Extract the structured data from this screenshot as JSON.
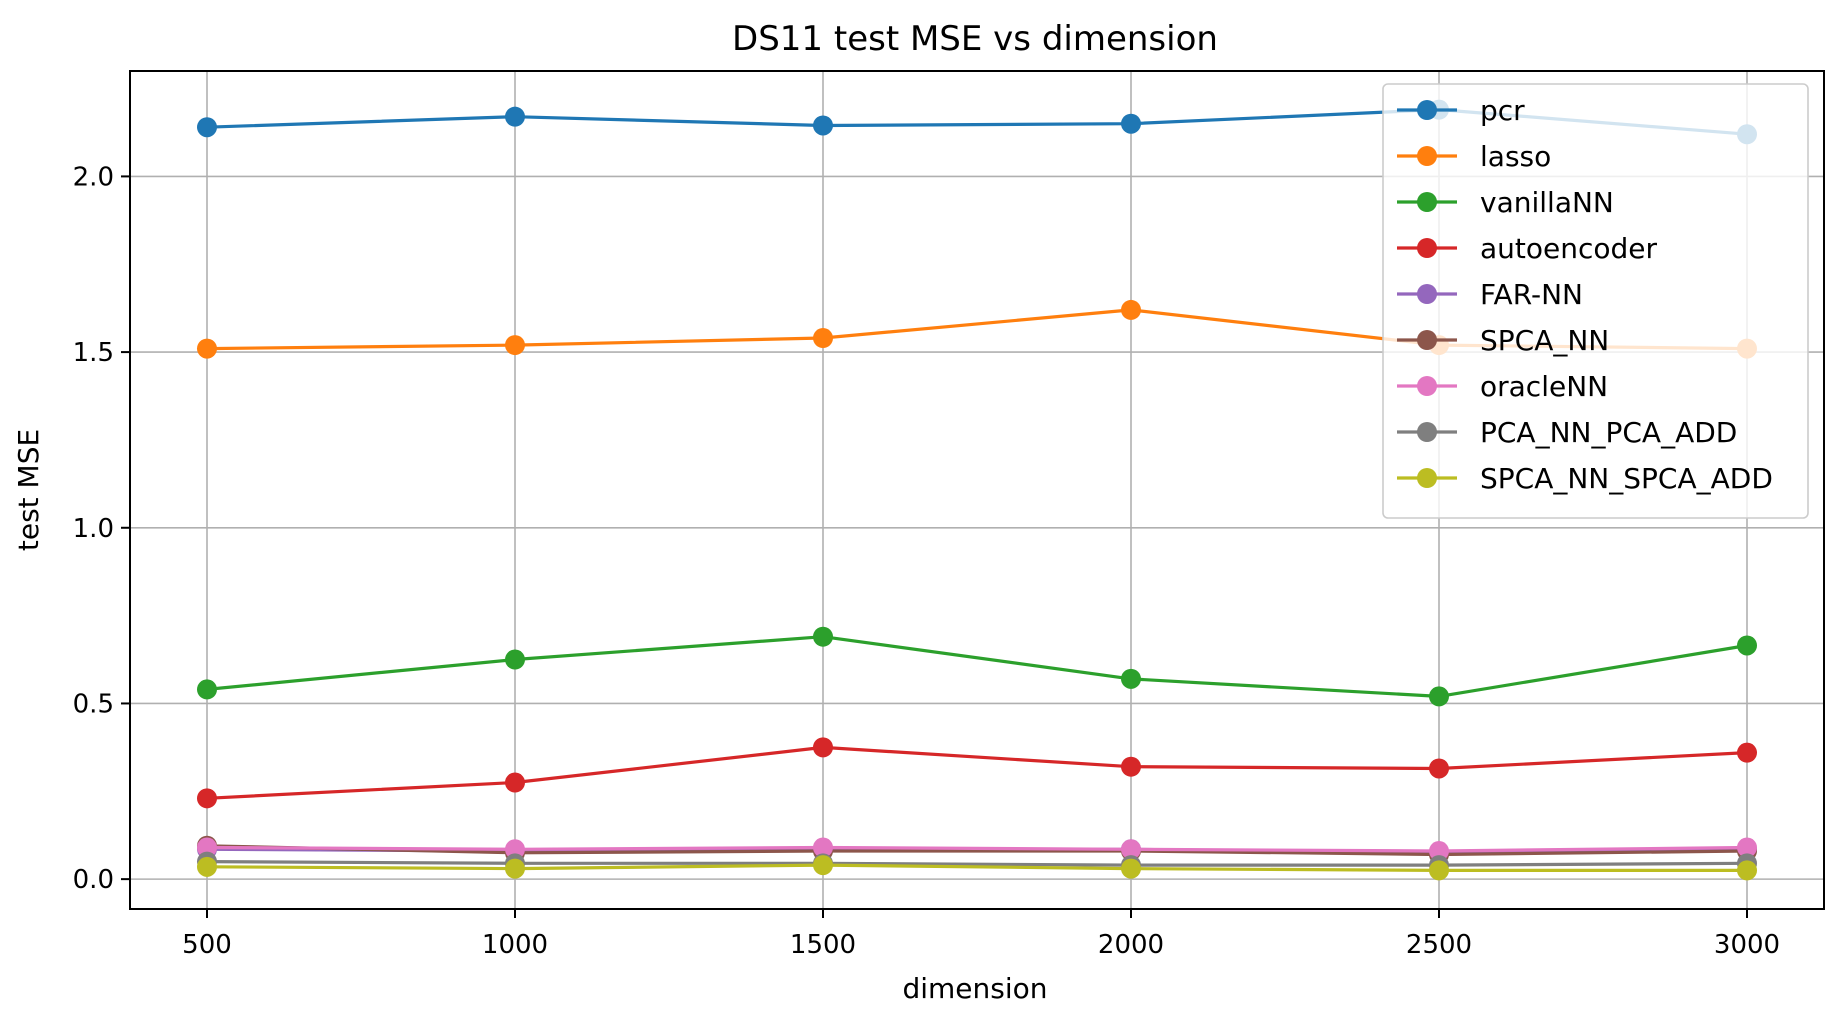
{
  "chart_data": {
    "type": "line",
    "title": "DS11 test MSE vs dimension",
    "xlabel": "dimension",
    "ylabel": "test MSE",
    "x": [
      500,
      1000,
      1500,
      2000,
      2500,
      3000
    ],
    "xticks": [
      500,
      1000,
      1500,
      2000,
      2500,
      3000
    ],
    "xtick_labels": [
      "500",
      "1000",
      "1500",
      "2000",
      "2500",
      "3000"
    ],
    "yticks": [
      0.0,
      0.5,
      1.0,
      1.5,
      2.0
    ],
    "ytick_labels": [
      "0.0",
      "0.5",
      "1.0",
      "1.5",
      "2.0"
    ],
    "xlim": [
      375,
      3125
    ],
    "ylim": [
      -0.085,
      2.3
    ],
    "grid": true,
    "legend_position": "top-right",
    "marker": "circle",
    "series": [
      {
        "name": "pcr",
        "color": "#1f77b4",
        "values": [
          2.14,
          2.17,
          2.145,
          2.15,
          2.19,
          2.12
        ]
      },
      {
        "name": "lasso",
        "color": "#ff7f0e",
        "values": [
          1.51,
          1.52,
          1.54,
          1.62,
          1.52,
          1.51
        ]
      },
      {
        "name": "vanillaNN",
        "color": "#2ca02c",
        "values": [
          0.54,
          0.625,
          0.69,
          0.57,
          0.52,
          0.665
        ]
      },
      {
        "name": "autoencoder",
        "color": "#d62728",
        "values": [
          0.23,
          0.275,
          0.375,
          0.32,
          0.315,
          0.36
        ]
      },
      {
        "name": "FAR-NN",
        "color": "#9467bd",
        "values": [
          0.085,
          0.08,
          0.085,
          0.085,
          0.075,
          0.085
        ]
      },
      {
        "name": "SPCA_NN",
        "color": "#8c564b",
        "values": [
          0.095,
          0.075,
          0.08,
          0.08,
          0.07,
          0.08
        ]
      },
      {
        "name": "oracleNN",
        "color": "#e377c2",
        "values": [
          0.09,
          0.085,
          0.09,
          0.085,
          0.08,
          0.09
        ]
      },
      {
        "name": "PCA_NN_PCA_ADD",
        "color": "#7f7f7f",
        "values": [
          0.05,
          0.045,
          0.045,
          0.04,
          0.04,
          0.045
        ]
      },
      {
        "name": "SPCA_NN_SPCA_ADD",
        "color": "#bcbd22",
        "values": [
          0.035,
          0.03,
          0.04,
          0.03,
          0.025,
          0.025
        ]
      }
    ]
  }
}
